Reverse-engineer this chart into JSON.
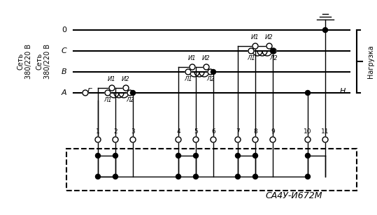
{
  "title": "СА4У-И672М",
  "bg_color": "#ffffff",
  "line_color": "#000000",
  "fig_width": 5.39,
  "fig_height": 3.08,
  "dpi": 100,
  "left_label": "Сеть\n380/220 В",
  "right_label": "Нагрузка",
  "bus_labels": [
    "A",
    "B",
    "C",
    "0"
  ],
  "bus_label_g": "Г",
  "bus_label_h": "Н",
  "terminal_labels": [
    "1",
    "2",
    "3",
    "4",
    "5",
    "6",
    "7",
    "8",
    "9",
    "10",
    "11"
  ],
  "tt_labels_il": [
    "И1",
    "И2"
  ],
  "tt_labels_l": [
    "Л1",
    "Л2"
  ]
}
